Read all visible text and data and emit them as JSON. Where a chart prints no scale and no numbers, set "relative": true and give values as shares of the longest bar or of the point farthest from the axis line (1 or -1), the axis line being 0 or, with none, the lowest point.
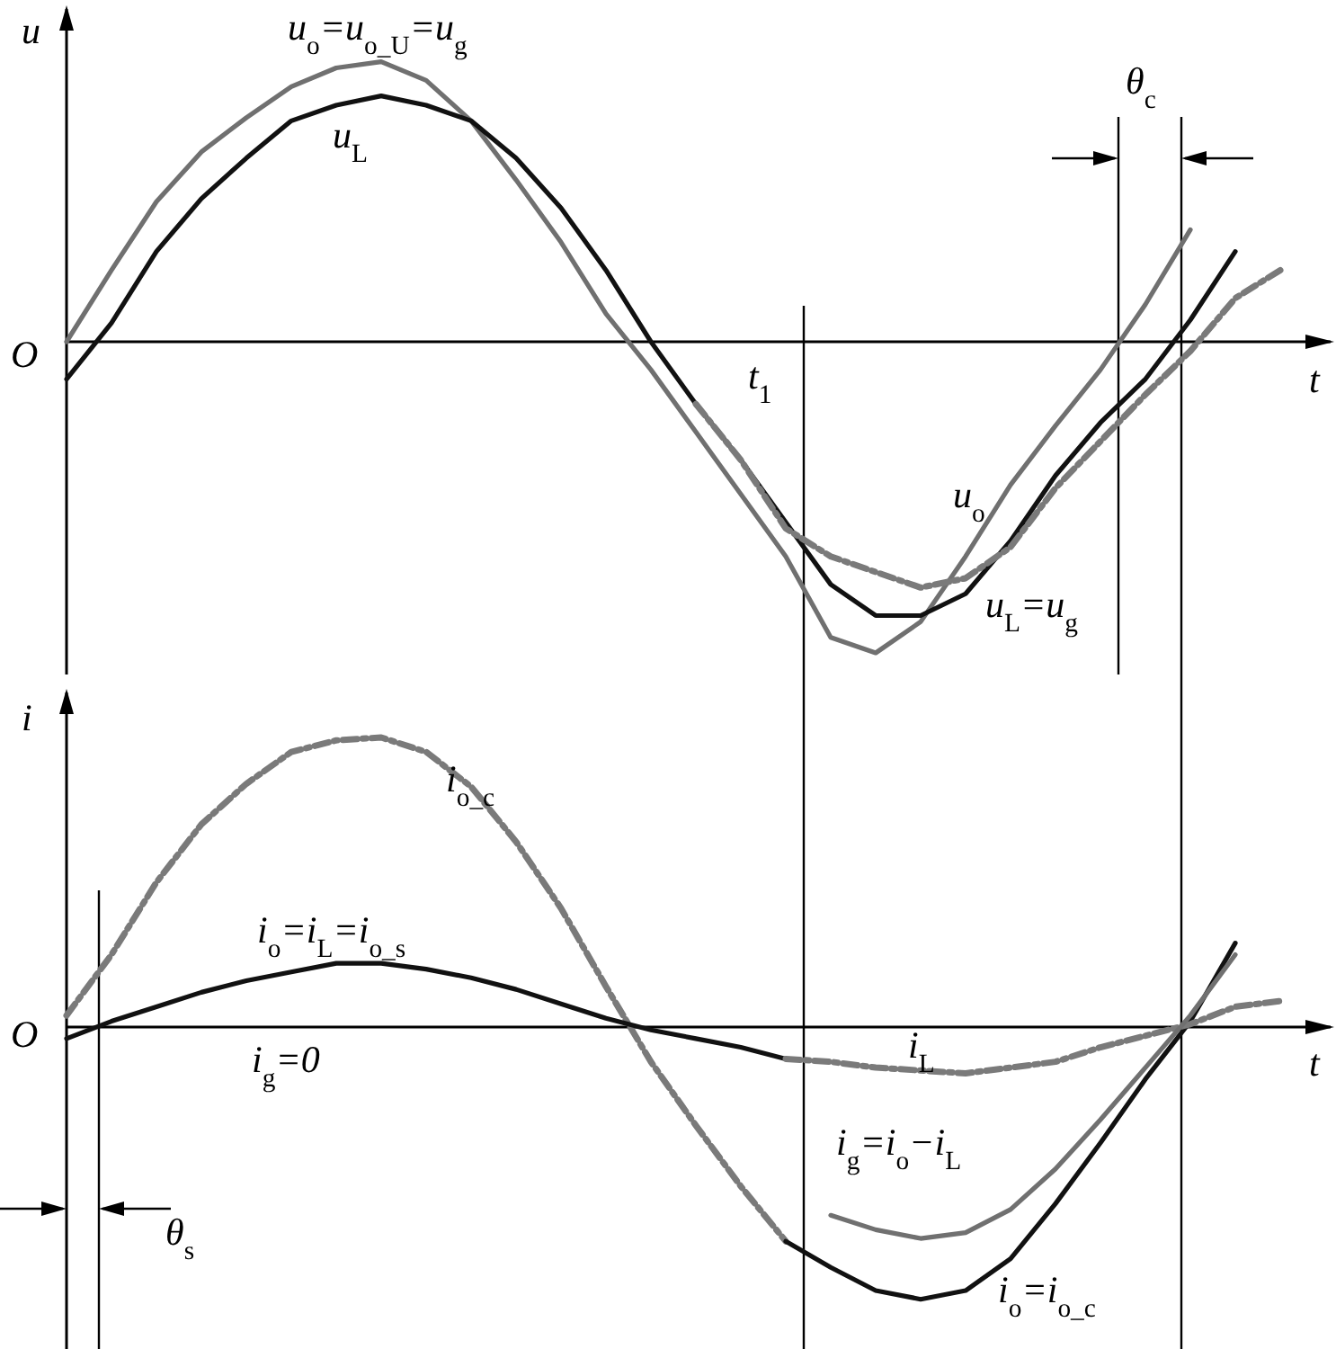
{
  "chart_data": [
    {
      "type": "line",
      "relative": true,
      "xlabel": "t",
      "ylabel": "u",
      "categories": [
        null,
        null,
        null,
        null,
        null,
        null,
        null,
        null,
        null,
        null,
        null,
        null,
        null,
        null,
        null,
        null,
        null,
        null,
        null,
        null,
        null,
        null,
        null,
        null,
        null,
        null,
        null,
        null
      ],
      "series": [
        {
          "name": "u$_{o}$=u$_{o_U}$=u$_{g}$",
          "color": "#707070",
          "line_style": "solid",
          "values": [
            0,
            0.23,
            0.45,
            0.61,
            0.72,
            0.82,
            0.88,
            0.9,
            0.84,
            0.71,
            0.52,
            0.32,
            0.09,
            -0.09,
            -0.29,
            -0.49,
            -0.69,
            -0.95,
            -1,
            -0.9,
            -0.69,
            -0.46,
            -0.27,
            -0.09,
            0.12,
            0.36,
            null,
            null
          ]
        },
        {
          "name": "u$_{L}$",
          "color": "#111111",
          "line_style": "solid",
          "values": [
            -0.12,
            0.06,
            0.29,
            0.46,
            0.59,
            0.71,
            0.76,
            0.79,
            0.76,
            0.71,
            0.59,
            0.43,
            0.23,
            0,
            -0.2,
            -0.38,
            -0.58,
            -0.78,
            -0.88,
            -0.88,
            -0.81,
            -0.64,
            -0.43,
            -0.26,
            -0.12,
            0.07,
            0.29,
            null
          ]
        },
        {
          "name": "u$_{L}$=u$_{g}$",
          "color": "#7a7a7a",
          "line_style": "dotted",
          "values": [
            null,
            null,
            null,
            null,
            null,
            null,
            null,
            null,
            null,
            null,
            null,
            null,
            null,
            null,
            -0.2,
            -0.38,
            -0.6,
            -0.69,
            -0.74,
            -0.79,
            -0.76,
            -0.66,
            -0.47,
            -0.32,
            -0.17,
            -0.03,
            0.14,
            0.23
          ]
        }
      ],
      "annotations": [
        "O",
        "u$_{o}$",
        "θ$_{c}$",
        "t$_{1}$"
      ]
    },
    {
      "type": "line",
      "relative": true,
      "xlabel": "t",
      "ylabel": "i",
      "categories": [
        null,
        null,
        null,
        null,
        null,
        null,
        null,
        null,
        null,
        null,
        null,
        null,
        null,
        null,
        null,
        null,
        null,
        null,
        null,
        null,
        null,
        null,
        null,
        null,
        null,
        null,
        null,
        null
      ],
      "series": [
        {
          "name": "i$_{o_c}$",
          "color": "#7a7a7a",
          "line_style": "dotted",
          "values": [
            0.04,
            0.25,
            0.5,
            0.7,
            0.84,
            0.95,
            0.99,
            1,
            0.95,
            0.83,
            0.64,
            0.41,
            0.14,
            -0.12,
            -0.34,
            -0.55,
            -0.74,
            null,
            null,
            null,
            null,
            null,
            null,
            null,
            null,
            null,
            null,
            null
          ]
        },
        {
          "name": "i$_{o}$=i$_{L}$=i$_{o_s}$",
          "color": "#111111",
          "line_style": "solid",
          "values": [
            -0.04,
            0.02,
            0.07,
            0.12,
            0.16,
            0.19,
            0.22,
            0.22,
            0.2,
            0.17,
            0.13,
            0.08,
            0.03,
            -0.01,
            -0.04,
            -0.07,
            -0.11,
            null,
            null,
            null,
            null,
            null,
            null,
            null,
            null,
            null,
            null,
            null
          ]
        },
        {
          "name": "i$_{o}$=i$_{o_c}$",
          "color": "#111111",
          "line_style": "solid",
          "values": [
            null,
            null,
            null,
            null,
            null,
            null,
            null,
            null,
            null,
            null,
            null,
            null,
            null,
            null,
            null,
            null,
            -0.74,
            -0.83,
            -0.91,
            -0.94,
            -0.91,
            -0.8,
            -0.61,
            -0.4,
            -0.18,
            0.02,
            0.29,
            null
          ]
        },
        {
          "name": "i$_{L}$",
          "color": "#7a7a7a",
          "line_style": "dotted",
          "values": [
            null,
            null,
            null,
            null,
            null,
            null,
            null,
            null,
            null,
            null,
            null,
            null,
            null,
            null,
            null,
            null,
            -0.11,
            -0.12,
            -0.14,
            -0.15,
            -0.16,
            -0.14,
            -0.12,
            -0.07,
            -0.03,
            0.01,
            0.07,
            0.09
          ]
        },
        {
          "name": "i$_{g}$=i$_{o}$−i$_{L}$",
          "color": "#707070",
          "line_style": "solid",
          "values": [
            null,
            null,
            null,
            null,
            null,
            null,
            null,
            null,
            null,
            null,
            null,
            null,
            null,
            null,
            null,
            null,
            null,
            -0.65,
            -0.7,
            -0.73,
            -0.71,
            -0.63,
            -0.49,
            -0.32,
            -0.14,
            0.04,
            0.25,
            null
          ]
        }
      ],
      "annotations": [
        "O",
        "i$_{g}$=0",
        "θ$_{s}$"
      ]
    }
  ]
}
